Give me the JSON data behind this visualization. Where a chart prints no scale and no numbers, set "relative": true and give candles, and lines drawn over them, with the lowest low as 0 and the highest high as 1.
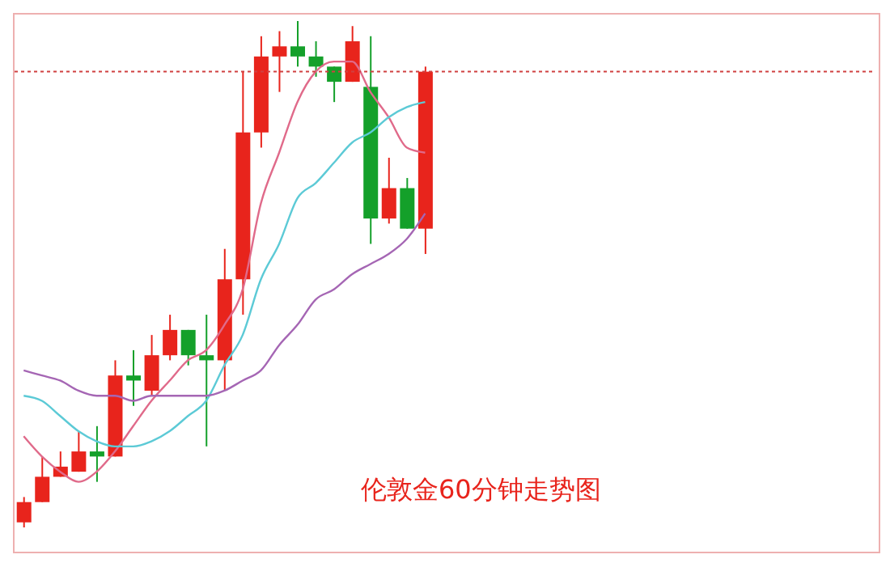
{
  "chart_data": {
    "type": "candlestick",
    "relative": true,
    "categories": [
      null,
      null,
      null,
      null,
      null,
      null,
      null,
      null,
      null,
      null,
      null,
      null,
      null,
      null,
      null,
      null,
      null,
      null,
      null,
      null,
      null,
      null,
      null,
      null,
      null,
      null,
      null,
      null,
      null,
      null,
      null,
      null,
      null,
      null,
      null,
      null,
      null,
      null,
      null,
      null,
      null,
      null,
      null,
      null,
      null,
      null,
      null
    ],
    "ohlc": [
      [
        0.01,
        0.06,
        0,
        0.05
      ],
      [
        0.05,
        0.14,
        0.05,
        0.1
      ],
      [
        0.1,
        0.15,
        0.1,
        0.12
      ],
      [
        0.11,
        0.19,
        0.11,
        0.15
      ],
      [
        0.15,
        0.2,
        0.09,
        0.14
      ],
      [
        0.14,
        0.33,
        0.14,
        0.3
      ],
      [
        0.3,
        0.35,
        0.24,
        0.29
      ],
      [
        0.27,
        0.38,
        0.26,
        0.34
      ],
      [
        0.34,
        0.42,
        0.33,
        0.39
      ],
      [
        0.39,
        0.39,
        0.32,
        0.34
      ],
      [
        0.34,
        0.42,
        0.16,
        0.33
      ],
      [
        0.33,
        0.55,
        0.27,
        0.49
      ],
      [
        0.49,
        0.9,
        0.42,
        0.78
      ],
      [
        0.78,
        0.97,
        0.75,
        0.93
      ],
      [
        0.93,
        0.98,
        0.86,
        0.95
      ],
      [
        0.95,
        1,
        0.91,
        0.93
      ],
      [
        0.93,
        0.96,
        0.89,
        0.91
      ],
      [
        0.91,
        0.91,
        0.84,
        0.88
      ],
      [
        0.88,
        0.99,
        0.88,
        0.96
      ],
      [
        0.87,
        0.97,
        0.56,
        0.61
      ],
      [
        0.61,
        0.73,
        0.6,
        0.67
      ],
      [
        0.67,
        0.69,
        0.59,
        0.59
      ],
      [
        0.59,
        0.91,
        0.54,
        0.9
      ],
      null,
      null,
      null,
      null,
      null,
      null,
      null,
      null,
      null,
      null,
      null,
      null,
      null,
      null,
      null,
      null,
      null,
      null,
      null,
      null,
      null,
      null,
      null,
      null
    ],
    "colors": [
      "#e8241c",
      "#e8241c",
      "#e8241c",
      "#e8241c",
      "#14a02a",
      "#e8241c",
      "#14a02a",
      "#e8241c",
      "#e8241c",
      "#14a02a",
      "#14a02a",
      "#e8241c",
      "#e8241c",
      "#e8241c",
      "#e8241c",
      "#14a02a",
      "#14a02a",
      "#14a02a",
      "#e8241c",
      "#14a02a",
      "#e8241c",
      "#14a02a",
      "#e8241c",
      null,
      null,
      null,
      null,
      null,
      null,
      null,
      null,
      null,
      null,
      null,
      null,
      null,
      null,
      null,
      null,
      null,
      null,
      null,
      null,
      null,
      null,
      null,
      null
    ],
    "series": [
      {
        "type": "line",
        "color": "#e06a8a",
        "values": [
          0.18,
          0.14,
          0.11,
          0.09,
          0.11,
          0.15,
          0.2,
          0.25,
          0.29,
          0.33,
          0.35,
          0.4,
          0.47,
          0.64,
          0.74,
          0.84,
          0.9,
          0.92,
          0.92,
          0.86,
          0.81,
          0.75,
          0.74,
          null,
          null,
          null,
          null,
          null,
          null,
          null,
          null,
          null,
          null,
          null,
          null,
          null,
          null,
          null,
          null,
          null,
          null,
          null,
          null,
          null,
          null,
          null,
          null
        ]
      },
      {
        "type": "line",
        "color": "#5ccad6",
        "values": [
          0.26,
          0.25,
          0.22,
          0.19,
          0.17,
          0.16,
          0.16,
          0.17,
          0.19,
          0.22,
          0.25,
          0.32,
          0.38,
          0.49,
          0.56,
          0.65,
          0.68,
          0.72,
          0.76,
          0.78,
          0.81,
          0.83,
          0.84,
          null,
          null,
          null,
          null,
          null,
          null,
          null,
          null,
          null,
          null,
          null,
          null,
          null,
          null,
          null,
          null,
          null,
          null,
          null,
          null,
          null,
          null,
          null,
          null
        ]
      },
      {
        "type": "line",
        "color": "#a566b4",
        "values": [
          0.31,
          0.3,
          0.29,
          0.27,
          0.26,
          0.26,
          0.25,
          0.26,
          0.26,
          0.26,
          0.26,
          0.27,
          0.29,
          0.31,
          0.36,
          0.4,
          0.45,
          0.47,
          0.5,
          0.52,
          0.54,
          0.57,
          0.62,
          null,
          null,
          null,
          null,
          null,
          null,
          null,
          null,
          null,
          null,
          null,
          null,
          null,
          null,
          null,
          null,
          null,
          null,
          null,
          null,
          null,
          null,
          null,
          null
        ]
      }
    ],
    "ref_lines": [
      {
        "axis": "y",
        "value": 0.9,
        "color": "#d04040",
        "line_style": "dotted"
      }
    ],
    "annotations": [
      "伦敦金60分钟走势图"
    ]
  }
}
